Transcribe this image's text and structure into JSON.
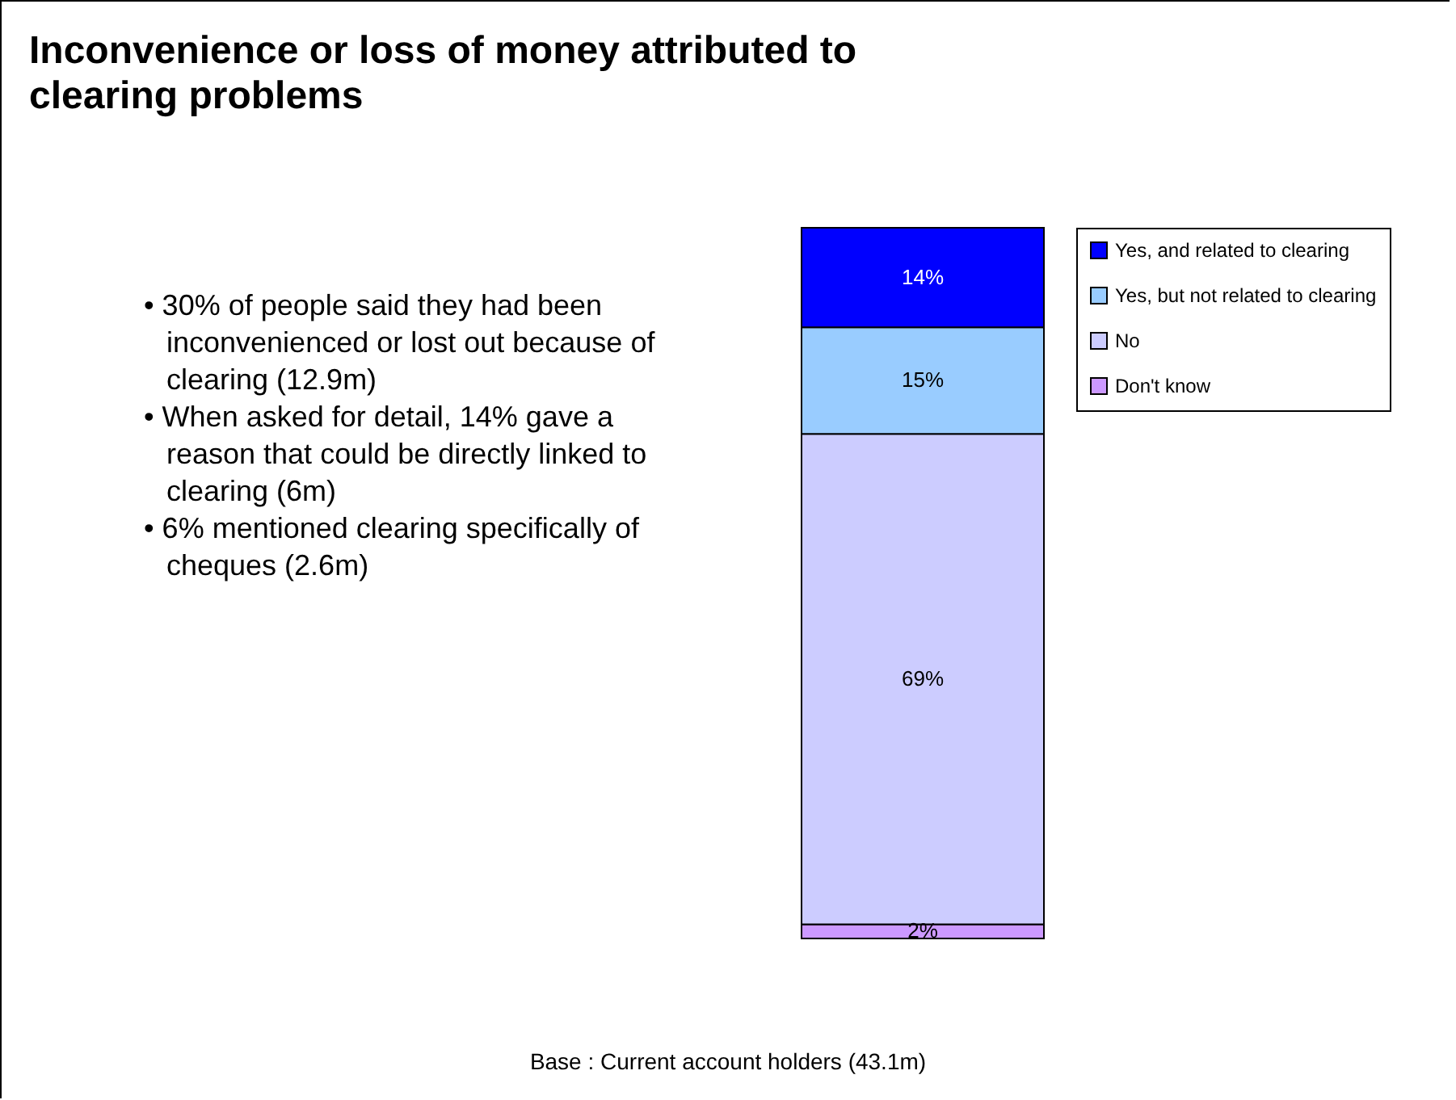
{
  "chart_data": {
    "type": "bar",
    "title": "Inconvenience or loss of money attributed to clearing problems",
    "categories": [
      null
    ],
    "stacked": true,
    "legend": "right",
    "tick_labels": false,
    "series": [
      {
        "name": "Don't know",
        "color": "#cc99ff",
        "values": [
          2
        ],
        "value_labels": [
          "2%"
        ]
      },
      {
        "name": "No",
        "color": "#ccccff",
        "values": [
          69
        ],
        "value_labels": [
          "69%"
        ]
      },
      {
        "name": "Yes, but not related to clearing",
        "color": "#99ccff",
        "values": [
          15
        ],
        "value_labels": [
          "15%"
        ]
      },
      {
        "name": "Yes, and related to clearing",
        "color": "#0000ff",
        "values": [
          14
        ],
        "value_labels": [
          "14%"
        ]
      }
    ],
    "annotations": [
      "• 30% of people said they had been inconvenienced or lost out because of clearing (12.9m)",
      "• When asked for detail, 14% gave a reason that could be directly linked to clearing (6m)",
      "• 6% mentioned clearing specifically of cheques (2.6m)",
      "Base : Current account holders (43.1m)"
    ]
  }
}
